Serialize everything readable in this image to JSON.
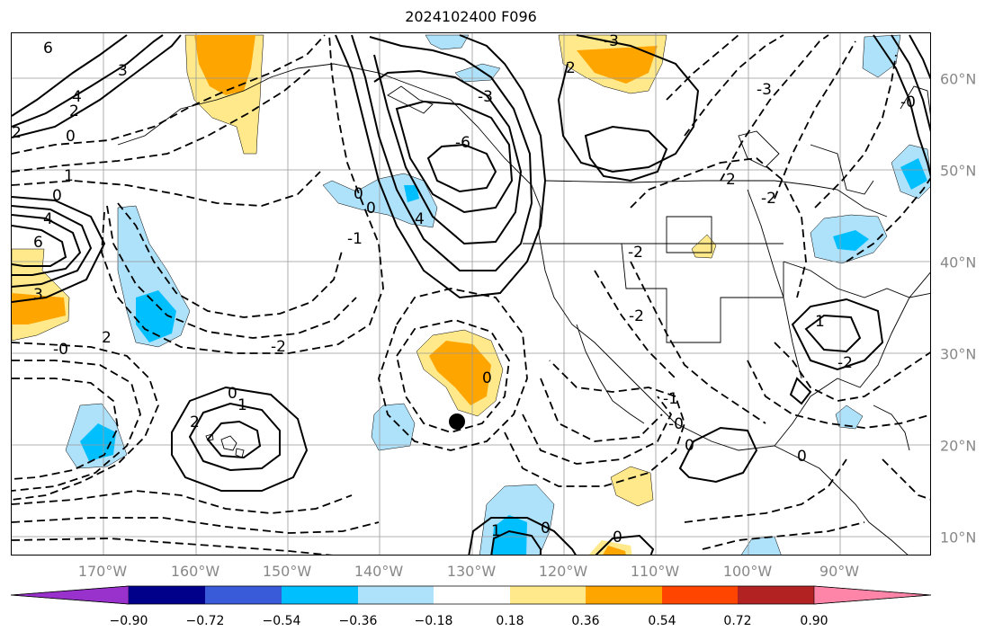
{
  "title": "2024102400 F096",
  "map": {
    "projection": "plate-carree",
    "lon_range": [
      -180,
      -80
    ],
    "lat_range": [
      8,
      65
    ],
    "lat_labels": [
      "60°N",
      "50°N",
      "40°N",
      "30°N",
      "20°N",
      "10°N"
    ],
    "lon_labels": [
      "170°W",
      "160°W",
      "150°W",
      "140°W",
      "130°W",
      "120°W",
      "110°W",
      "100°W",
      "90°W"
    ],
    "contour_labels": [
      "6",
      "3",
      "4",
      "2",
      "0",
      "2",
      "1",
      "0",
      "4",
      "6",
      "3",
      "-0",
      "-2",
      "0",
      "1",
      "2",
      "0",
      "4",
      "-6",
      "-3",
      "2",
      "-3",
      "-3",
      "-0",
      "0",
      "-1",
      "0",
      "-2",
      "-2",
      "-1",
      "-0",
      "2",
      "0",
      "-2",
      "1",
      "-2",
      "1",
      "0",
      "0",
      "2",
      "0"
    ],
    "marker": {
      "lon": -131,
      "lat": 22.5,
      "label": "storm-position"
    },
    "colors": {
      "land_lines": "#000000",
      "contour": "#000000",
      "grid": "#999999"
    }
  },
  "colorbar": {
    "ticks": [
      "−0.90",
      "−0.72",
      "−0.54",
      "−0.36",
      "−0.18",
      "0.18",
      "0.36",
      "0.54",
      "0.72",
      "0.90"
    ],
    "colors": [
      "#9932cc",
      "#00008b",
      "#3a5bd9",
      "#00bfff",
      "#aee1fa",
      "#ffffff",
      "#ffe98a",
      "#ffa500",
      "#ff4500",
      "#b22222",
      "#ff85a8"
    ]
  }
}
